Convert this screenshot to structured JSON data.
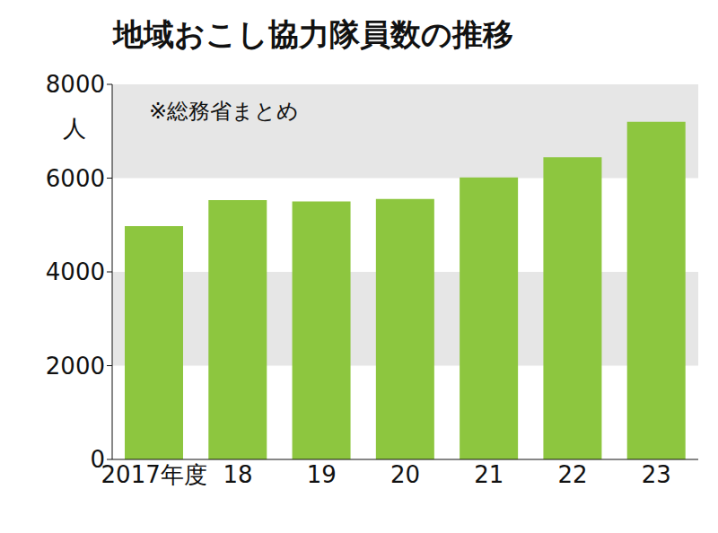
{
  "chart_data": {
    "type": "bar",
    "title": "地域おこし協力隊員数の推移",
    "annotation": "※総務省まとめ",
    "ylabel": "人",
    "categories": [
      "2017年度",
      "18",
      "19",
      "20",
      "21",
      "22",
      "23"
    ],
    "values": [
      4976,
      5530,
      5503,
      5556,
      6015,
      6447,
      7200
    ],
    "color": "#8dc63f",
    "ylim": [
      0,
      8000
    ],
    "yticks": [
      0,
      2000,
      4000,
      6000,
      8000
    ],
    "grid": true
  }
}
